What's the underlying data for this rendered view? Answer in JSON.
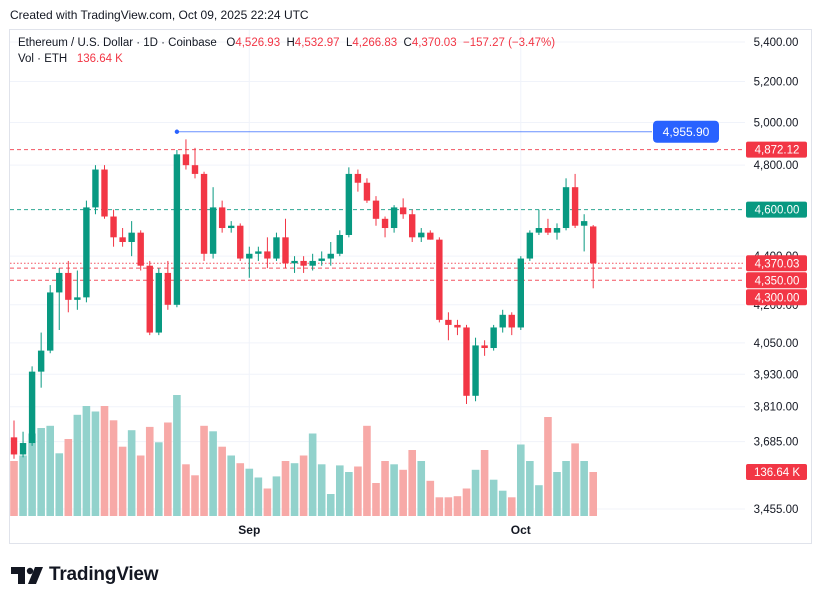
{
  "caption": "Created with TradingView.com, Oct 09, 2025 22:24 UTC",
  "legend": {
    "symbol": "Ethereum / U.S. Dollar · 1D · Coinbase",
    "o_label": "O",
    "o_value": "4,526.93",
    "h_label": "H",
    "h_value": "4,532.97",
    "l_label": "L",
    "l_value": "4,266.83",
    "c_label": "C",
    "c_value": "4,370.03",
    "change": "−157.27 (−3.47%)",
    "vol_label": "Vol · ETH",
    "vol_value": "136.64 K"
  },
  "brand": {
    "name": "TradingView",
    "icon": "tradingview-logo-icon"
  },
  "colors": {
    "up": "#089981",
    "down": "#f23645",
    "vol_up": "#92d2cc",
    "vol_down": "#f7a9a7",
    "blue": "#2962ff",
    "grid": "#f0f3fa"
  },
  "chart_data": {
    "type": "candlestick",
    "y_scale": "log",
    "ylim": [
      3400,
      5450
    ],
    "y_ticks": [
      "5,400.00",
      "5,200.00",
      "5,000.00",
      "4,800.00",
      "4,400.00",
      "4,200.00",
      "4,050.00",
      "3,930.00",
      "3,810.00",
      "3,685.00",
      "3,455.00"
    ],
    "y_tick_values": [
      5400,
      5200,
      5000,
      4800,
      4400,
      4200,
      4050,
      3930,
      3810,
      3685,
      3455
    ],
    "x_labels": [
      {
        "text": "Sep",
        "index": 26
      },
      {
        "text": "Oct",
        "index": 56
      }
    ],
    "price_lines": [
      {
        "value": 4955.9,
        "label": "4,955.90",
        "color": "#2962ff",
        "style": "solid",
        "start_index": 18
      },
      {
        "value": 4872.12,
        "label": "4,872.12",
        "color": "#f23645",
        "style": "dashed"
      },
      {
        "value": 4600.0,
        "label": "4,600.00",
        "color": "#089981",
        "style": "dashed"
      },
      {
        "value": 4370.03,
        "label": "4,370.03",
        "color": "#f23645",
        "style": "dotted"
      },
      {
        "value": 4350.0,
        "label": "4,350.00",
        "color": "#f23645",
        "style": "dashed"
      },
      {
        "value": 4300.0,
        "label": "4,300.00",
        "color": "#f23645",
        "style": "dashed"
      }
    ],
    "volume_label": "136.64 K",
    "candles": [
      {
        "o": 3700,
        "h": 3760,
        "l": 3625,
        "c": 3640
      },
      {
        "o": 3640,
        "h": 3720,
        "l": 3630,
        "c": 3680
      },
      {
        "o": 3680,
        "h": 3960,
        "l": 3670,
        "c": 3940
      },
      {
        "o": 3940,
        "h": 4090,
        "l": 3880,
        "c": 4020
      },
      {
        "o": 4020,
        "h": 4280,
        "l": 4010,
        "c": 4250
      },
      {
        "o": 4250,
        "h": 4350,
        "l": 4100,
        "c": 4330
      },
      {
        "o": 4330,
        "h": 4380,
        "l": 4170,
        "c": 4220
      },
      {
        "o": 4220,
        "h": 4340,
        "l": 4180,
        "c": 4230
      },
      {
        "o": 4230,
        "h": 4640,
        "l": 4210,
        "c": 4610
      },
      {
        "o": 4610,
        "h": 4800,
        "l": 4580,
        "c": 4780
      },
      {
        "o": 4780,
        "h": 4800,
        "l": 4560,
        "c": 4570
      },
      {
        "o": 4570,
        "h": 4600,
        "l": 4440,
        "c": 4480
      },
      {
        "o": 4480,
        "h": 4520,
        "l": 4440,
        "c": 4460
      },
      {
        "o": 4460,
        "h": 4550,
        "l": 4400,
        "c": 4500
      },
      {
        "o": 4500,
        "h": 4510,
        "l": 4340,
        "c": 4360
      },
      {
        "o": 4360,
        "h": 4380,
        "l": 4080,
        "c": 4090
      },
      {
        "o": 4090,
        "h": 4350,
        "l": 4080,
        "c": 4330
      },
      {
        "o": 4330,
        "h": 4380,
        "l": 4180,
        "c": 4200
      },
      {
        "o": 4200,
        "h": 4870,
        "l": 4190,
        "c": 4850
      },
      {
        "o": 4850,
        "h": 4920,
        "l": 4780,
        "c": 4800
      },
      {
        "o": 4800,
        "h": 4880,
        "l": 4740,
        "c": 4760
      },
      {
        "o": 4760,
        "h": 4770,
        "l": 4380,
        "c": 4410
      },
      {
        "o": 4410,
        "h": 4700,
        "l": 4390,
        "c": 4610
      },
      {
        "o": 4610,
        "h": 4640,
        "l": 4500,
        "c": 4520
      },
      {
        "o": 4520,
        "h": 4550,
        "l": 4500,
        "c": 4530
      },
      {
        "o": 4530,
        "h": 4540,
        "l": 4380,
        "c": 4390
      },
      {
        "o": 4390,
        "h": 4440,
        "l": 4310,
        "c": 4410
      },
      {
        "o": 4410,
        "h": 4440,
        "l": 4380,
        "c": 4420
      },
      {
        "o": 4420,
        "h": 4480,
        "l": 4350,
        "c": 4390
      },
      {
        "o": 4390,
        "h": 4500,
        "l": 4380,
        "c": 4480
      },
      {
        "o": 4480,
        "h": 4560,
        "l": 4350,
        "c": 4370
      },
      {
        "o": 4370,
        "h": 4400,
        "l": 4330,
        "c": 4380
      },
      {
        "o": 4380,
        "h": 4400,
        "l": 4330,
        "c": 4360
      },
      {
        "o": 4360,
        "h": 4410,
        "l": 4340,
        "c": 4380
      },
      {
        "o": 4380,
        "h": 4420,
        "l": 4360,
        "c": 4390
      },
      {
        "o": 4390,
        "h": 4460,
        "l": 4360,
        "c": 4410
      },
      {
        "o": 4410,
        "h": 4510,
        "l": 4400,
        "c": 4490
      },
      {
        "o": 4490,
        "h": 4790,
        "l": 4480,
        "c": 4760
      },
      {
        "o": 4760,
        "h": 4780,
        "l": 4680,
        "c": 4720
      },
      {
        "o": 4720,
        "h": 4740,
        "l": 4630,
        "c": 4640
      },
      {
        "o": 4640,
        "h": 4660,
        "l": 4530,
        "c": 4560
      },
      {
        "o": 4560,
        "h": 4570,
        "l": 4480,
        "c": 4520
      },
      {
        "o": 4520,
        "h": 4620,
        "l": 4500,
        "c": 4610
      },
      {
        "o": 4610,
        "h": 4650,
        "l": 4560,
        "c": 4580
      },
      {
        "o": 4580,
        "h": 4600,
        "l": 4460,
        "c": 4480
      },
      {
        "o": 4480,
        "h": 4520,
        "l": 4460,
        "c": 4500
      },
      {
        "o": 4500,
        "h": 4510,
        "l": 4470,
        "c": 4470
      },
      {
        "o": 4470,
        "h": 4480,
        "l": 4130,
        "c": 4140
      },
      {
        "o": 4140,
        "h": 4170,
        "l": 4060,
        "c": 4120
      },
      {
        "o": 4120,
        "h": 4140,
        "l": 4080,
        "c": 4110
      },
      {
        "o": 4110,
        "h": 4120,
        "l": 3820,
        "c": 3850
      },
      {
        "o": 3850,
        "h": 4070,
        "l": 3830,
        "c": 4040
      },
      {
        "o": 4040,
        "h": 4060,
        "l": 4000,
        "c": 4030
      },
      {
        "o": 4030,
        "h": 4120,
        "l": 4020,
        "c": 4110
      },
      {
        "o": 4110,
        "h": 4180,
        "l": 4090,
        "c": 4160
      },
      {
        "o": 4160,
        "h": 4170,
        "l": 4080,
        "c": 4110
      },
      {
        "o": 4110,
        "h": 4400,
        "l": 4100,
        "c": 4390
      },
      {
        "o": 4390,
        "h": 4510,
        "l": 4380,
        "c": 4500
      },
      {
        "o": 4500,
        "h": 4600,
        "l": 4490,
        "c": 4520
      },
      {
        "o": 4520,
        "h": 4560,
        "l": 4490,
        "c": 4500
      },
      {
        "o": 4500,
        "h": 4540,
        "l": 4470,
        "c": 4520
      },
      {
        "o": 4520,
        "h": 4740,
        "l": 4510,
        "c": 4700
      },
      {
        "o": 4700,
        "h": 4760,
        "l": 4520,
        "c": 4530
      },
      {
        "o": 4530,
        "h": 4580,
        "l": 4420,
        "c": 4550
      },
      {
        "o": 4526.93,
        "h": 4532.97,
        "l": 4266.83,
        "c": 4370.03
      }
    ],
    "volumes": [
      0.5,
      0.55,
      0.75,
      0.8,
      0.82,
      0.57,
      0.7,
      0.92,
      1.0,
      0.95,
      1.0,
      0.87,
      0.63,
      0.78,
      0.55,
      0.81,
      0.67,
      0.85,
      1.1,
      0.47,
      0.37,
      0.82,
      0.77,
      0.63,
      0.55,
      0.48,
      0.43,
      0.35,
      0.25,
      0.36,
      0.5,
      0.48,
      0.55,
      0.75,
      0.47,
      0.2,
      0.46,
      0.4,
      0.45,
      0.82,
      0.3,
      0.5,
      0.47,
      0.42,
      0.6,
      0.5,
      0.32,
      0.17,
      0.17,
      0.18,
      0.25,
      0.42,
      0.6,
      0.33,
      0.23,
      0.17,
      0.65,
      0.5,
      0.28,
      0.9,
      0.4,
      0.5,
      0.66,
      0.5,
      0.4
    ]
  }
}
